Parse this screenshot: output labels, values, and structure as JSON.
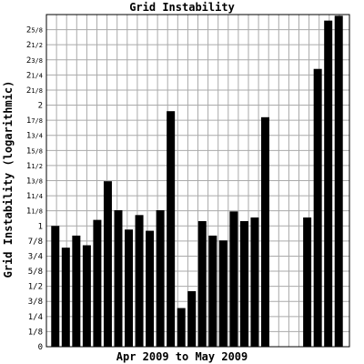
{
  "chart_data": {
    "type": "bar",
    "title": "Grid Instability",
    "xlabel": "Apr 2009 to May 2009",
    "ylabel": "Grid Instability (logarithmic)",
    "y_tick_labels": [
      "0",
      "1/8",
      "1/4",
      "3/8",
      "1/2",
      "5/8",
      "3/4",
      "7/8",
      "1",
      "1 1/8",
      "1 1/4",
      "1 3/8",
      "1 1/2",
      "1 5/8",
      "1 3/4",
      "1 7/8",
      "2",
      "2 1/8",
      "2 1/4",
      "2 3/8",
      "2 1/2",
      "2 5/8"
    ],
    "y_tick_values": [
      0,
      0.125,
      0.25,
      0.375,
      0.5,
      0.625,
      0.75,
      0.875,
      1,
      1.125,
      1.25,
      1.375,
      1.5,
      1.625,
      1.75,
      1.875,
      2,
      2.125,
      2.25,
      2.375,
      2.5,
      2.625
    ],
    "ylim": [
      0,
      2.75
    ],
    "grid": true,
    "colors": {
      "bar": "#000000",
      "grid": "#aaaaaa",
      "frame": "#000000",
      "background": "#ffffff"
    },
    "values": [
      1.0,
      0.82,
      0.92,
      0.84,
      1.05,
      1.37,
      1.13,
      0.97,
      1.09,
      0.96,
      1.13,
      1.95,
      0.32,
      0.46,
      1.04,
      0.92,
      0.88,
      1.12,
      1.04,
      1.07,
      1.9,
      null,
      null,
      null,
      1.07,
      2.3,
      2.7,
      2.74
    ]
  }
}
